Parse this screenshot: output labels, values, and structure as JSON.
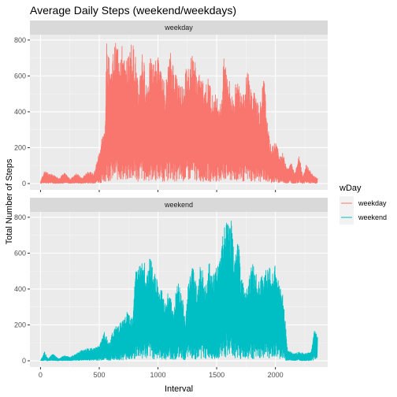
{
  "chart_data": {
    "type": "line",
    "title": "Average Daily Steps (weekend/weekdays)",
    "xlabel": "Interval",
    "ylabel": "Total Number of Steps",
    "xlim": [
      -90,
      2445
    ],
    "ylim": [
      -35,
      830
    ],
    "x_ticks": [
      0,
      500,
      1000,
      1500,
      2000
    ],
    "y_ticks": [
      0,
      200,
      400,
      600,
      800
    ],
    "grid": true,
    "legend": {
      "title": "wDay",
      "position": "right",
      "entries": [
        {
          "label": "weekday",
          "color": "#F8766D"
        },
        {
          "label": "weekend",
          "color": "#00BFC4"
        }
      ]
    },
    "panels": [
      {
        "strip": "weekday",
        "series": "weekday",
        "color": "#F8766D",
        "note": "values are approximate readings of the spike envelope",
        "envelope": [
          [
            0,
            20
          ],
          [
            30,
            70
          ],
          [
            60,
            60
          ],
          [
            100,
            50
          ],
          [
            150,
            30
          ],
          [
            200,
            60
          ],
          [
            250,
            25
          ],
          [
            300,
            60
          ],
          [
            350,
            30
          ],
          [
            400,
            70
          ],
          [
            450,
            55
          ],
          [
            500,
            190
          ],
          [
            520,
            270
          ],
          [
            545,
            300
          ],
          [
            560,
            790
          ],
          [
            580,
            700
          ],
          [
            600,
            660
          ],
          [
            620,
            770
          ],
          [
            650,
            800
          ],
          [
            680,
            780
          ],
          [
            700,
            770
          ],
          [
            720,
            650
          ],
          [
            745,
            740
          ],
          [
            770,
            800
          ],
          [
            800,
            760
          ],
          [
            830,
            520
          ],
          [
            860,
            780
          ],
          [
            900,
            560
          ],
          [
            930,
            700
          ],
          [
            960,
            680
          ],
          [
            1000,
            720
          ],
          [
            1030,
            600
          ],
          [
            1060,
            560
          ],
          [
            1100,
            740
          ],
          [
            1130,
            680
          ],
          [
            1160,
            600
          ],
          [
            1200,
            560
          ],
          [
            1230,
            640
          ],
          [
            1260,
            690
          ],
          [
            1300,
            740
          ],
          [
            1330,
            620
          ],
          [
            1360,
            600
          ],
          [
            1400,
            560
          ],
          [
            1430,
            600
          ],
          [
            1460,
            500
          ],
          [
            1500,
            500
          ],
          [
            1530,
            450
          ],
          [
            1560,
            720
          ],
          [
            1600,
            600
          ],
          [
            1630,
            480
          ],
          [
            1660,
            560
          ],
          [
            1700,
            580
          ],
          [
            1730,
            520
          ],
          [
            1760,
            650
          ],
          [
            1800,
            500
          ],
          [
            1830,
            520
          ],
          [
            1860,
            440
          ],
          [
            1900,
            600
          ],
          [
            1930,
            320
          ],
          [
            1960,
            200
          ],
          [
            2000,
            240
          ],
          [
            2030,
            160
          ],
          [
            2060,
            170
          ],
          [
            2100,
            80
          ],
          [
            2130,
            120
          ],
          [
            2160,
            60
          ],
          [
            2200,
            160
          ],
          [
            2230,
            40
          ],
          [
            2260,
            110
          ],
          [
            2300,
            60
          ],
          [
            2330,
            40
          ],
          [
            2355,
            30
          ]
        ]
      },
      {
        "strip": "weekend",
        "series": "weekend",
        "color": "#00BFC4",
        "note": "values are approximate readings of the spike envelope",
        "envelope": [
          [
            0,
            5
          ],
          [
            30,
            50
          ],
          [
            60,
            10
          ],
          [
            100,
            40
          ],
          [
            150,
            10
          ],
          [
            200,
            30
          ],
          [
            250,
            20
          ],
          [
            300,
            40
          ],
          [
            350,
            60
          ],
          [
            400,
            70
          ],
          [
            450,
            70
          ],
          [
            500,
            90
          ],
          [
            540,
            160
          ],
          [
            580,
            100
          ],
          [
            620,
            180
          ],
          [
            660,
            210
          ],
          [
            700,
            230
          ],
          [
            740,
            280
          ],
          [
            780,
            250
          ],
          [
            800,
            500
          ],
          [
            820,
            550
          ],
          [
            850,
            540
          ],
          [
            880,
            560
          ],
          [
            900,
            470
          ],
          [
            930,
            590
          ],
          [
            960,
            480
          ],
          [
            980,
            520
          ],
          [
            1000,
            410
          ],
          [
            1030,
            400
          ],
          [
            1060,
            330
          ],
          [
            1100,
            420
          ],
          [
            1130,
            250
          ],
          [
            1160,
            470
          ],
          [
            1200,
            400
          ],
          [
            1230,
            230
          ],
          [
            1260,
            480
          ],
          [
            1300,
            550
          ],
          [
            1330,
            390
          ],
          [
            1360,
            560
          ],
          [
            1400,
            420
          ],
          [
            1430,
            560
          ],
          [
            1460,
            460
          ],
          [
            1500,
            560
          ],
          [
            1530,
            600
          ],
          [
            1560,
            760
          ],
          [
            1590,
            790
          ],
          [
            1620,
            780
          ],
          [
            1650,
            560
          ],
          [
            1680,
            690
          ],
          [
            1700,
            500
          ],
          [
            1730,
            420
          ],
          [
            1760,
            450
          ],
          [
            1800,
            560
          ],
          [
            1830,
            490
          ],
          [
            1860,
            440
          ],
          [
            1900,
            520
          ],
          [
            1930,
            560
          ],
          [
            1960,
            490
          ],
          [
            2000,
            540
          ],
          [
            2030,
            420
          ],
          [
            2060,
            380
          ],
          [
            2100,
            60
          ],
          [
            2150,
            40
          ],
          [
            2200,
            50
          ],
          [
            2250,
            40
          ],
          [
            2300,
            50
          ],
          [
            2330,
            180
          ],
          [
            2355,
            140
          ]
        ]
      }
    ]
  }
}
